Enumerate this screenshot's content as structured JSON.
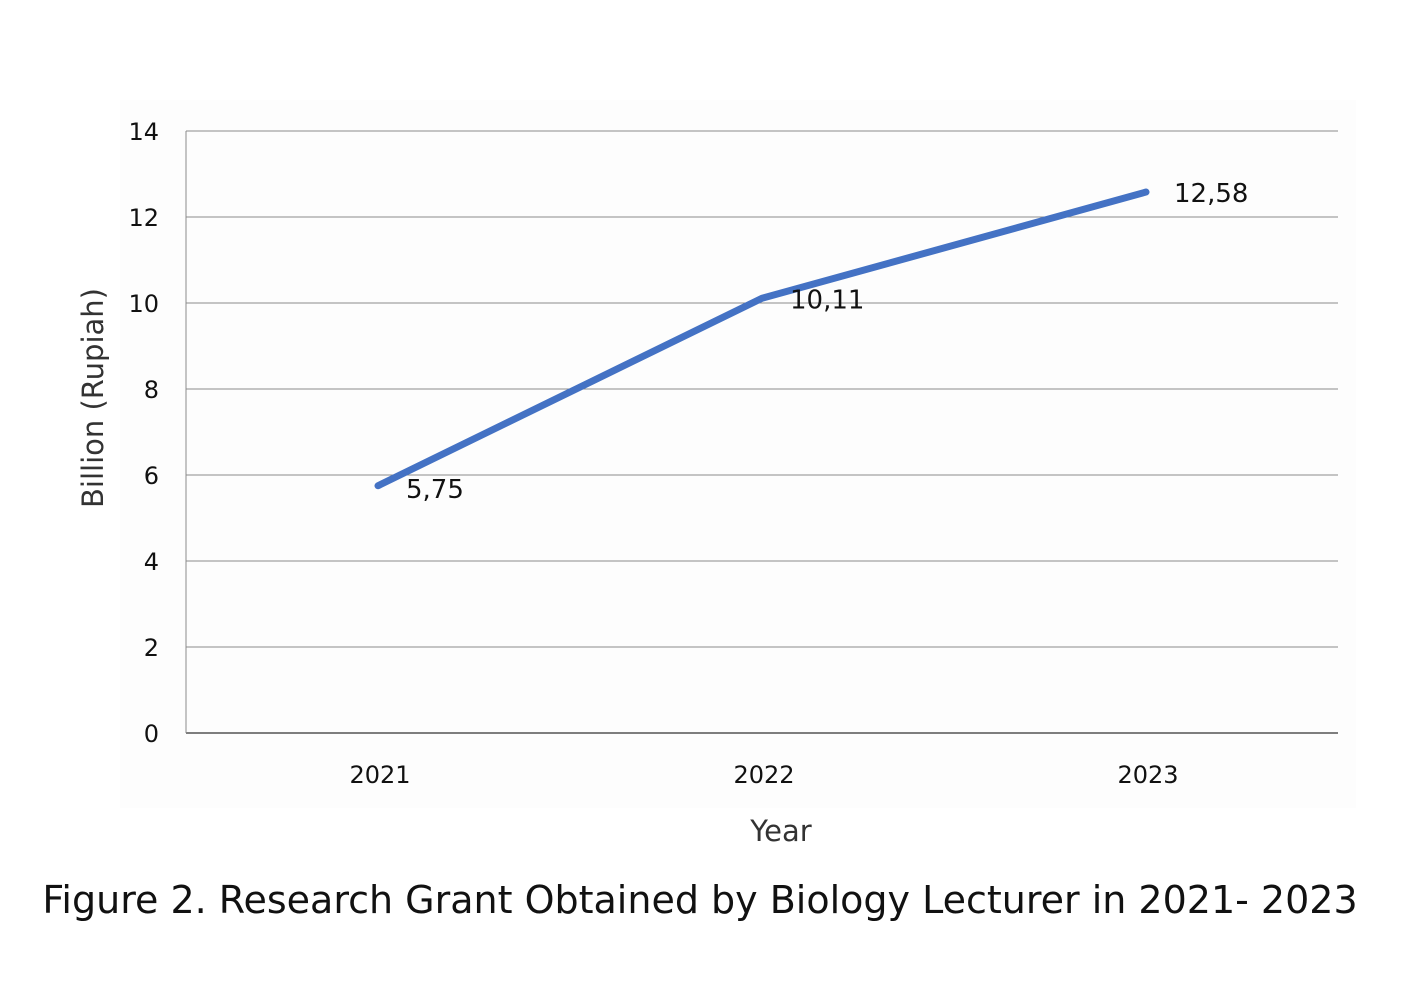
{
  "chart_data": {
    "type": "line",
    "title": "",
    "xlabel": "Year",
    "ylabel": "Billion (Rupiah)",
    "categories": [
      "2021",
      "2022",
      "2023"
    ],
    "series": [
      {
        "name": "Research Grant",
        "values": [
          5.75,
          10.11,
          12.58
        ],
        "color": "#4472c4"
      }
    ],
    "data_labels": [
      "5,75",
      "10,11",
      "12,58"
    ],
    "ylim": [
      0,
      14
    ],
    "yticks": [
      0,
      2,
      4,
      6,
      8,
      10,
      12,
      14
    ],
    "ytick_labels": [
      "0",
      "2",
      "4",
      "6",
      "8",
      "10",
      "12",
      "14"
    ],
    "grid": true,
    "legend": "none"
  },
  "caption": "Figure 2. Research Grant Obtained by Biology Lecturer in 2021- 2023"
}
